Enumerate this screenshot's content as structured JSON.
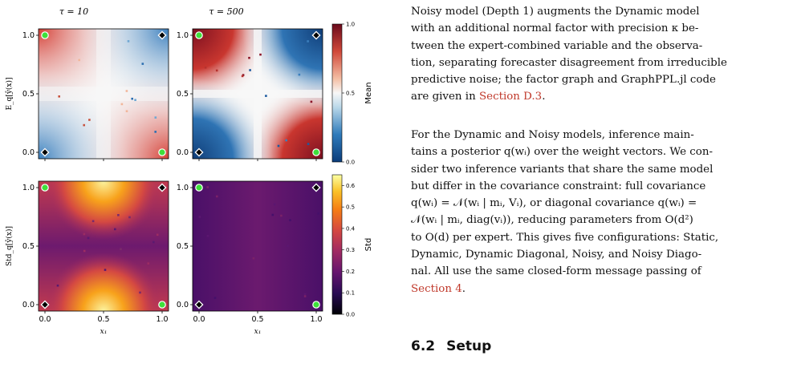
{
  "figure": {
    "columns": [
      "τ = 10",
      "τ = 500"
    ],
    "rows": [
      {
        "ylabel": "E_q[ŷ(x)]",
        "colorbar_label": "Mean",
        "colormap": "diverging-red-blue",
        "colorbar_ticks": [
          "0.0",
          "0.5",
          "1.0"
        ],
        "colorbar_range": [
          0,
          1
        ]
      },
      {
        "ylabel": "Std_q[ŷ(x)]",
        "colorbar_label": "Std",
        "colormap": "inferno",
        "colorbar_ticks": [
          "0.0",
          "0.1",
          "0.2",
          "0.3",
          "0.4",
          "0.5",
          "0.6"
        ],
        "colorbar_range": [
          0,
          0.65
        ]
      }
    ],
    "x_tick_labels": [
      "0.0",
      "0.5",
      "1.0"
    ],
    "y_tick_labels": [
      "0.0",
      "0.5",
      "1.0"
    ],
    "xlabel": "x₁",
    "marker_legend": {
      "green_circle": "label 1",
      "white_diamond": "label 0"
    }
  },
  "text": {
    "para1_lines": [
      "Noisy model (Depth 1) augments the Dynamic model",
      "with an additional normal factor with precision κ be-",
      "tween the expert-combined variable and the observa-",
      "tion, separating forecaster disagreement from irreducible",
      "predictive noise; the factor graph and GraphPPL.jl code",
      "are given in "
    ],
    "para1_ref": "Section D.3",
    "para1_end": ".",
    "para2_lines": [
      "For the Dynamic and Noisy models, inference main-",
      "tains a posterior q(wᵢ) over the weight vectors. We con-",
      "sider two inference variants that share the same model",
      "but differ in the covariance constraint: full covariance",
      "q(wᵢ) = 𝒩(wᵢ | mᵢ, Vᵢ), or diagonal covariance q(wᵢ) =",
      "𝒩(wᵢ | mᵢ, diag(vᵢ)), reducing parameters from O(d²)",
      "to O(d) per expert. This gives five configurations: Static,",
      "Dynamic, Dynamic Diagonal, Noisy, and Noisy Diago-",
      "nal. All use the same closed-form message passing of"
    ],
    "para2_ref": "Section 4",
    "para2_end": ".",
    "section_number": "6.2",
    "section_title": "Setup"
  }
}
